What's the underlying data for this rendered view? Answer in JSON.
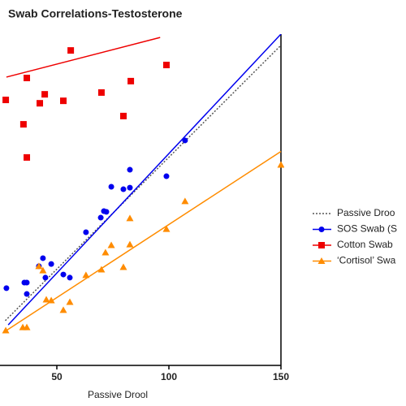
{
  "chart_data": {
    "type": "scatter",
    "title": "Swab Correlations-Testosterone",
    "x_label": "Passive Drool",
    "xlim": [
      25,
      150
    ],
    "xticks": [
      50,
      100,
      150
    ],
    "ylim": [
      7,
      155
    ],
    "series": [
      {
        "name": "Passive Droo",
        "color": "#555555",
        "marker": "none",
        "dash": true,
        "fit": {
          "x": [
            27,
            150
          ],
          "values": [
            27,
            150
          ]
        }
      },
      {
        "name": "SOS Swab (S",
        "color": "#0000ee",
        "marker": "circle",
        "x": [
          27.5,
          35.5,
          36.6,
          36.6,
          42,
          43.8,
          44.9,
          47.5,
          52.9,
          55.8,
          63,
          69.6,
          71,
          72.1,
          74.3,
          79.7,
          82.6,
          82.6,
          98.9,
          107.2
        ],
        "values": [
          41.5,
          44,
          38.9,
          44,
          51.3,
          54.9,
          46.2,
          52.3,
          47.6,
          46.2,
          66.5,
          73,
          75.9,
          75.6,
          86.8,
          85.7,
          86.4,
          94.4,
          91.5,
          107.5
        ],
        "fit": {
          "x": [
            28.3,
            150
          ],
          "values": [
            25.1,
            155
          ]
        }
      },
      {
        "name": "Cotton Swab",
        "color": "#ee0000",
        "marker": "square",
        "x": [
          27.2,
          35.1,
          36.6,
          36.6,
          42.4,
          44.6,
          52.9,
          56.2,
          69.9,
          79.7,
          83,
          98.9
        ],
        "values": [
          125.6,
          114.7,
          135.4,
          99.9,
          124.1,
          128.1,
          125.2,
          147.7,
          128.9,
          118.4,
          134,
          141.2
        ],
        "fit": {
          "x": [
            27.5,
            96.1
          ],
          "values": [
            135.8,
            153.5
          ]
        }
      },
      {
        "name": "‘Cortisol’ Swa",
        "color": "#ff8c00",
        "marker": "triangle",
        "x": [
          27.2,
          34.8,
          36.6,
          42,
          43.8,
          45.3,
          47.5,
          52.9,
          55.8,
          63,
          69.9,
          71.7,
          74.3,
          79.7,
          82.6,
          82.6,
          98.9,
          107.2,
          150
        ],
        "values": [
          22.6,
          24,
          24,
          51.3,
          49.4,
          36.4,
          36,
          31.7,
          35.3,
          47.3,
          49.8,
          57.4,
          60.7,
          50.9,
          72.7,
          61,
          67.9,
          80.3,
          96.6
        ],
        "fit": {
          "x": [
            27.5,
            150
          ],
          "values": [
            22.6,
            102.6
          ]
        }
      }
    ]
  }
}
